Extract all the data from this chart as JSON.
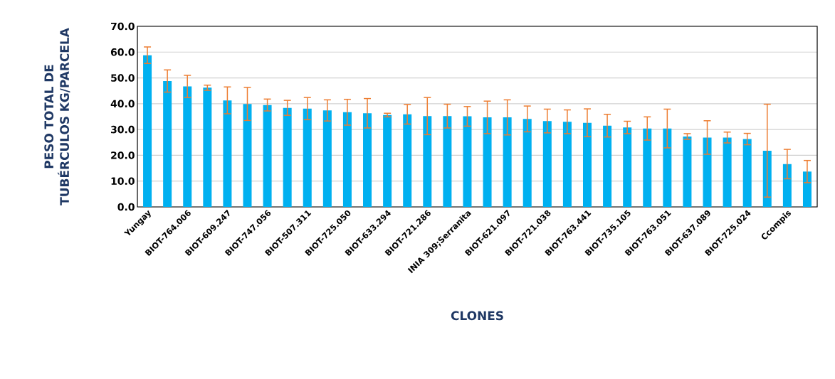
{
  "chart_data": {
    "type": "bar",
    "xlabel": "CLONES",
    "ylabel": "PESO TOTAL DE TUBÉRCULOS KG/PARCELA",
    "categories": [
      "Yungay",
      null,
      "BIOT-764.006",
      null,
      "BIOT-609.247",
      null,
      "BIOT-747.056",
      null,
      "BIOT-507.311",
      null,
      "BIOT-725.050",
      null,
      "BIOT-633.294",
      null,
      "BIOT-721.286",
      null,
      "INIA 309;Serranita",
      null,
      "BIOT-621.097",
      null,
      "BIOT-721.038",
      null,
      "BIOT-763.441",
      null,
      "BIOT-735.105",
      null,
      "BIOT-763.051",
      null,
      "BIOT-637.089",
      null,
      "BIOT-725.024",
      null,
      "Ccompis",
      null
    ],
    "values": [
      58.8,
      48.8,
      46.7,
      46.2,
      41.3,
      39.9,
      39.5,
      38.4,
      38.1,
      37.4,
      36.7,
      36.3,
      35.6,
      35.9,
      35.2,
      35.2,
      35.1,
      34.7,
      34.7,
      34.1,
      33.3,
      33.0,
      32.6,
      31.5,
      30.8,
      30.4,
      30.4,
      27.3,
      26.9,
      26.9,
      26.3,
      21.8,
      16.6,
      13.7
    ],
    "errors": [
      3.2,
      4.3,
      4.3,
      1.0,
      5.2,
      6.4,
      2.3,
      2.9,
      4.3,
      4.1,
      5.0,
      5.7,
      0.7,
      3.8,
      7.2,
      4.6,
      3.8,
      6.3,
      6.8,
      5.0,
      4.6,
      4.6,
      5.4,
      4.4,
      2.4,
      4.5,
      7.5,
      1.1,
      6.5,
      2.1,
      2.2,
      18.0,
      5.7,
      4.3
    ],
    "color": "#00b0f0",
    "ylim": [
      0,
      70
    ],
    "yticks": [
      {
        "value": 0,
        "label": "0.0"
      },
      {
        "value": 10,
        "label": "10.0"
      },
      {
        "value": 20,
        "label": "20.0"
      },
      {
        "value": 30,
        "label": "30.0"
      },
      {
        "value": 40,
        "label": "40.0"
      },
      {
        "value": 50,
        "label": "50.0"
      },
      {
        "value": 60,
        "label": "60.0"
      },
      {
        "value": 70,
        "label": "70.0"
      }
    ],
    "grid": "y"
  }
}
